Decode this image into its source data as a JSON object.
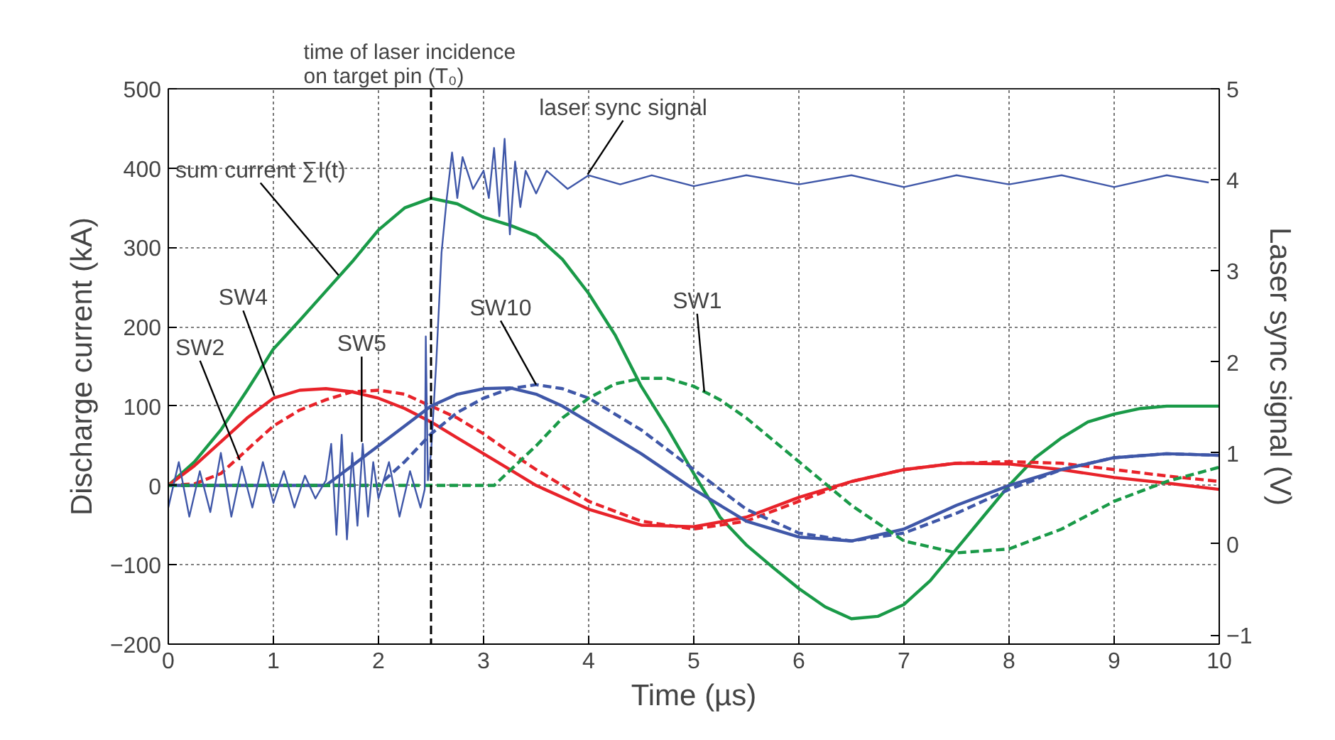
{
  "chart_data": {
    "type": "line",
    "xlabel": "Time (µs)",
    "ylabel": "Discharge current (kA)",
    "y2label": "Laser sync signal (V)",
    "xlim": [
      0,
      10
    ],
    "xticks": [
      0,
      1,
      2,
      3,
      4,
      5,
      6,
      7,
      8,
      9,
      10
    ],
    "ylim": [
      -200,
      500
    ],
    "yticks": [
      -200,
      -100,
      0,
      100,
      200,
      300,
      400,
      500
    ],
    "y2lim": [
      -1.1,
      5.0
    ],
    "y2ticks": [
      -1,
      0,
      1,
      2,
      3,
      4,
      5
    ],
    "grid": true,
    "marker": "none",
    "series": [
      {
        "color": "#1a9a48",
        "line_style": "solid",
        "x": [
          0,
          0.25,
          0.5,
          0.75,
          1,
          1.25,
          1.5,
          1.75,
          2,
          2.25,
          2.5,
          2.75,
          3,
          3.25,
          3.5,
          3.75,
          4,
          4.25,
          4.5,
          4.75,
          5,
          5.25,
          5.5,
          5.75,
          6,
          6.25,
          6.5,
          6.75,
          7,
          7.25,
          7.5,
          7.75,
          8,
          8.25,
          8.5,
          8.75,
          9,
          9.25,
          9.5,
          9.75,
          10
        ],
        "values": [
          0,
          30,
          70,
          120,
          172,
          208,
          245,
          282,
          322,
          350,
          362,
          355,
          338,
          328,
          315,
          285,
          242,
          190,
          125,
          72,
          15,
          -40,
          -75,
          -103,
          -130,
          -153,
          -168,
          -165,
          -150,
          -120,
          -80,
          -40,
          0,
          35,
          60,
          80,
          90,
          97,
          100,
          100,
          100
        ]
      },
      {
        "color": "#e8232a",
        "line_style": "dashed",
        "x": [
          0,
          0.25,
          0.5,
          0.75,
          1,
          1.25,
          1.5,
          1.75,
          2,
          2.25,
          2.5,
          2.75,
          3,
          3.25,
          3.5,
          3.75,
          4,
          4.5,
          5,
          5.5,
          6,
          6.5,
          7,
          7.5,
          8,
          8.5,
          9,
          9.5,
          10
        ],
        "values": [
          0,
          2,
          15,
          45,
          75,
          95,
          108,
          118,
          120,
          115,
          100,
          85,
          65,
          42,
          20,
          0,
          -20,
          -45,
          -55,
          -45,
          -20,
          5,
          20,
          28,
          30,
          28,
          20,
          12,
          5
        ]
      },
      {
        "color": "#e8232a",
        "line_style": "solid",
        "x": [
          0,
          0.25,
          0.5,
          0.75,
          1,
          1.25,
          1.5,
          1.75,
          2,
          2.25,
          2.5,
          2.75,
          3,
          3.25,
          3.5,
          3.75,
          4,
          4.5,
          5,
          5.5,
          6,
          6.5,
          7,
          7.5,
          8,
          8.5,
          9,
          9.5,
          10
        ],
        "values": [
          0,
          25,
          55,
          85,
          110,
          120,
          122,
          118,
          110,
          97,
          80,
          60,
          40,
          20,
          0,
          -15,
          -30,
          -50,
          -52,
          -40,
          -15,
          5,
          20,
          28,
          27,
          20,
          10,
          3,
          -5
        ]
      },
      {
        "color": "#3f57a8",
        "line_style": "solid",
        "x": [
          0,
          1.5,
          1.75,
          2,
          2.25,
          2.5,
          2.75,
          3,
          3.25,
          3.5,
          3.75,
          4,
          4.5,
          5,
          5.5,
          6,
          6.5,
          7,
          7.5,
          8,
          8.5,
          9,
          9.5,
          10
        ],
        "values": [
          0,
          0,
          25,
          50,
          75,
          100,
          115,
          122,
          123,
          115,
          100,
          80,
          40,
          -5,
          -45,
          -65,
          -70,
          -55,
          -25,
          0,
          20,
          35,
          40,
          38
        ]
      },
      {
        "color": "#3f57a8",
        "line_style": "dashed",
        "x": [
          0,
          2,
          2.25,
          2.5,
          2.75,
          3,
          3.25,
          3.5,
          3.75,
          4,
          4.5,
          5,
          5.5,
          6,
          6.5,
          7,
          7.5,
          8,
          8.5,
          9,
          9.5,
          10
        ],
        "values": [
          0,
          0,
          30,
          65,
          92,
          110,
          122,
          127,
          122,
          110,
          70,
          20,
          -30,
          -60,
          -70,
          -60,
          -35,
          -5,
          20,
          35,
          40,
          38
        ]
      },
      {
        "color": "#1a9a48",
        "line_style": "dashed",
        "x": [
          0,
          3.1,
          3.5,
          3.75,
          4,
          4.25,
          4.5,
          4.75,
          5,
          5.25,
          5.5,
          6,
          6.5,
          7,
          7.5,
          8,
          8.5,
          9,
          9.5,
          10
        ],
        "values": [
          0,
          0,
          50,
          85,
          110,
          128,
          135,
          135,
          125,
          108,
          85,
          30,
          -25,
          -70,
          -85,
          -80,
          -55,
          -20,
          5,
          23
        ]
      },
      {
        "color": "#3f57a8",
        "line_style": "solid",
        "axis": "y2",
        "x": [
          0,
          0.1,
          0.2,
          0.3,
          0.4,
          0.5,
          0.6,
          0.7,
          0.8,
          0.9,
          1.0,
          1.1,
          1.2,
          1.3,
          1.4,
          1.5,
          1.55,
          1.6,
          1.65,
          1.7,
          1.75,
          1.8,
          1.85,
          1.9,
          1.95,
          2.0,
          2.1,
          2.2,
          2.3,
          2.4,
          2.44,
          2.45,
          2.47,
          2.5,
          2.55,
          2.6,
          2.65,
          2.7,
          2.75,
          2.8,
          2.9,
          3.0,
          3.05,
          3.1,
          3.15,
          3.2,
          3.25,
          3.3,
          3.35,
          3.4,
          3.5,
          3.6,
          3.8,
          4.0,
          4.3,
          4.6,
          5.0,
          5.5,
          6.0,
          6.5,
          7.0,
          7.5,
          8.0,
          8.5,
          9.0,
          9.5,
          9.9
        ],
        "values": [
          0.4,
          0.9,
          0.3,
          0.8,
          0.35,
          1.0,
          0.3,
          0.85,
          0.4,
          0.9,
          0.45,
          0.8,
          0.4,
          0.75,
          0.5,
          0.7,
          1.1,
          0.1,
          1.2,
          0.05,
          1.0,
          0.2,
          1.1,
          0.3,
          0.9,
          0.5,
          0.9,
          0.3,
          0.8,
          0.4,
          0.6,
          2.28,
          0.7,
          1.0,
          2.0,
          3.2,
          3.8,
          4.3,
          3.8,
          4.25,
          3.9,
          4.1,
          3.8,
          4.35,
          3.6,
          4.45,
          3.4,
          4.2,
          3.7,
          4.1,
          3.85,
          4.1,
          3.9,
          4.05,
          3.95,
          4.05,
          3.93,
          4.05,
          3.95,
          4.05,
          3.92,
          4.05,
          3.95,
          4.05,
          3.92,
          4.05,
          3.97
        ]
      }
    ],
    "ref_lines": [
      {
        "axis": "x",
        "value": 2.5,
        "label": "time of laser incidence\non target pin (T₀)",
        "color": "#000000",
        "line_style": "dashed"
      }
    ],
    "annotations": [
      {
        "text": "SW2",
        "x": 0.68,
        "y": 32
      },
      {
        "text": "SW4",
        "x": 1.01,
        "y": 113
      },
      {
        "text": "SW5",
        "x": 1.84,
        "y": 55
      },
      {
        "text": "SW10",
        "x": 3.5,
        "y": 127
      },
      {
        "text": "SW1",
        "x": 5.1,
        "y": 118
      },
      {
        "text": "sum current ∑I(t)",
        "x": 1.62,
        "y": 265
      },
      {
        "text": "laser sync signal",
        "x": 3.99,
        "y": 392
      }
    ]
  }
}
